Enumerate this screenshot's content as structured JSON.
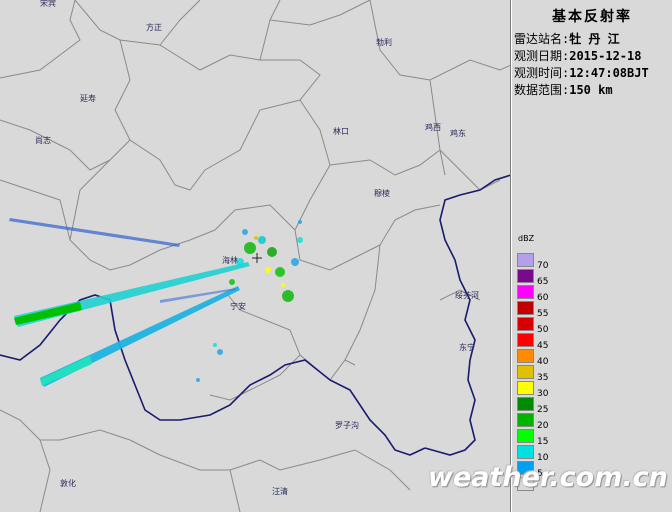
{
  "map": {
    "places": [
      {
        "name": "宋宾",
        "id": "songbin"
      },
      {
        "name": "方正",
        "id": "fangzheng"
      },
      {
        "name": "勃利",
        "id": "boli"
      },
      {
        "name": "延寿",
        "id": "yanshou"
      },
      {
        "name": "尚志",
        "id": "shangzhi"
      },
      {
        "name": "林口",
        "id": "linkou"
      },
      {
        "name": "鸡西",
        "id": "jixi"
      },
      {
        "name": "鸡东",
        "id": "jidong"
      },
      {
        "name": "穆棱",
        "id": "muling"
      },
      {
        "name": "海林",
        "id": "hailin"
      },
      {
        "name": "宁安",
        "id": "ningan"
      },
      {
        "name": "绥芬河",
        "id": "suifenhe"
      },
      {
        "name": "东宁",
        "id": "dongning"
      },
      {
        "name": "罗子沟",
        "id": "luozigou"
      },
      {
        "name": "敦化",
        "id": "dunhua"
      },
      {
        "name": "汪清",
        "id": "wangqing"
      }
    ]
  },
  "info": {
    "title": "基本反射率",
    "rows": [
      {
        "label": "雷达站名:",
        "value": "牡 丹 江"
      },
      {
        "label": "观测日期:",
        "value": "2015-12-18"
      },
      {
        "label": "观测时间:",
        "value": "12:47:08BJT"
      },
      {
        "label": "数据范围:",
        "value": "150 km"
      }
    ]
  },
  "legend": {
    "unit": "dBZ",
    "levels": [
      {
        "label": "70",
        "color": "#b4a0e8"
      },
      {
        "label": "65",
        "color": "#7a0a8c"
      },
      {
        "label": "60",
        "color": "#ff00ff"
      },
      {
        "label": "55",
        "color": "#c00000"
      },
      {
        "label": "50",
        "color": "#d60000"
      },
      {
        "label": "45",
        "color": "#ff0000"
      },
      {
        "label": "40",
        "color": "#ff8c00"
      },
      {
        "label": "35",
        "color": "#e0c000"
      },
      {
        "label": "30",
        "color": "#ffff00"
      },
      {
        "label": "25",
        "color": "#008c00"
      },
      {
        "label": "20",
        "color": "#00b400"
      },
      {
        "label": "15",
        "color": "#00ff00"
      },
      {
        "label": "10",
        "color": "#00e0e0"
      },
      {
        "label": "5",
        "color": "#00a0f0"
      },
      {
        "label": "",
        "color": "#d9d9d9"
      }
    ]
  },
  "watermark": "weather.com.cn"
}
